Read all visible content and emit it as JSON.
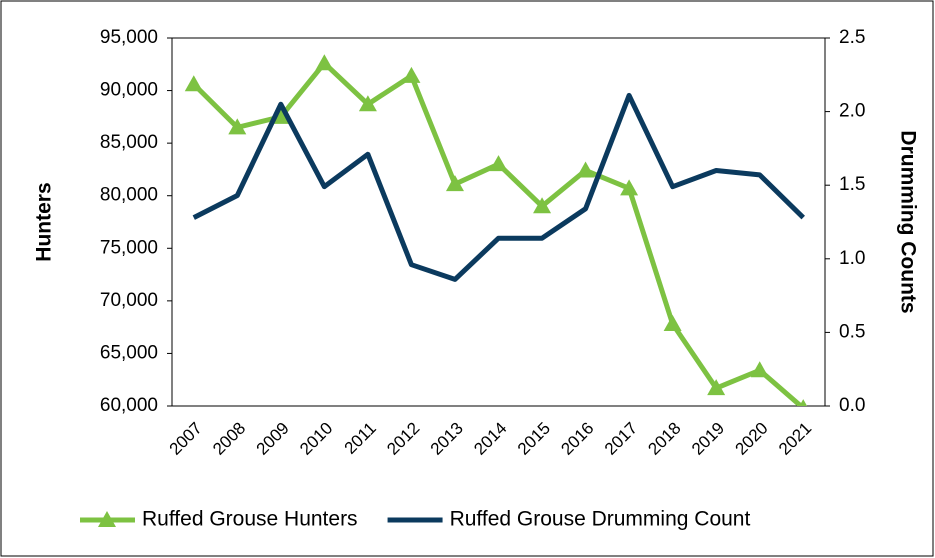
{
  "chart_data": {
    "type": "line",
    "categories": [
      "2007",
      "2008",
      "2009",
      "2010",
      "2011",
      "2012",
      "2013",
      "2014",
      "2015",
      "2016",
      "2017",
      "2018",
      "2019",
      "2020",
      "2021"
    ],
    "ylabel": "Hunters",
    "y2label": "Drumming Counts",
    "ylim": [
      60000,
      95000
    ],
    "yticks": [
      {
        "value": 60000,
        "label": "60,000"
      },
      {
        "value": 65000,
        "label": "65,000"
      },
      {
        "value": 70000,
        "label": "70,000"
      },
      {
        "value": 75000,
        "label": "75,000"
      },
      {
        "value": 80000,
        "label": "80,000"
      },
      {
        "value": 85000,
        "label": "85,000"
      },
      {
        "value": 90000,
        "label": "90,000"
      },
      {
        "value": 95000,
        "label": "95,000"
      }
    ],
    "y2lim": [
      0,
      2.5
    ],
    "y2ticks": [
      {
        "value": 0,
        "label": "0.0"
      },
      0.5,
      {
        "value": 1,
        "label": "1.0"
      },
      1.5,
      {
        "value": 2,
        "label": "2.0"
      },
      2.5
    ],
    "legend": "bottom",
    "series": [
      {
        "name": "Ruffed Grouse Hunters",
        "color": "#7dc242",
        "marker": "triangle",
        "values": [
          90600,
          86500,
          87500,
          92600,
          88700,
          91400,
          81100,
          83000,
          79000,
          82400,
          80700,
          67800,
          61700,
          63400,
          59800
        ]
      },
      {
        "name": "Ruffed Grouse Drumming Count",
        "color": "#0b3a5e",
        "axis": "y2",
        "values": [
          1.28,
          1.43,
          2.05,
          1.49,
          1.71,
          0.96,
          0.86,
          1.14,
          1.14,
          1.34,
          2.11,
          1.49,
          1.6,
          1.57,
          1.28
        ]
      }
    ]
  }
}
